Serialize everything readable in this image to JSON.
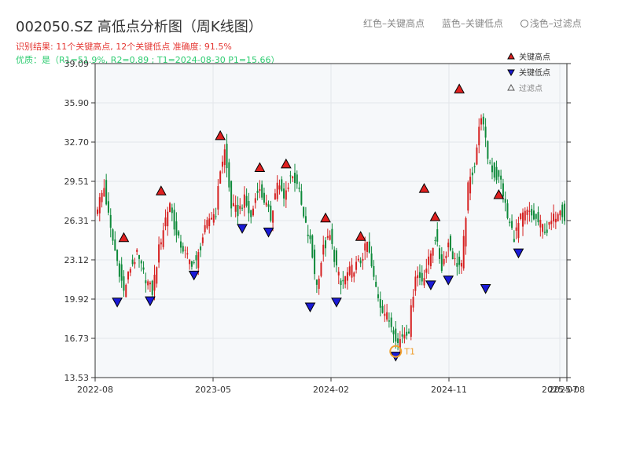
{
  "header": {
    "title": "002050.SZ 高低点分析图（周K线图）",
    "summary": "识别结果: 11个关键高点, 12个关键低点   准确度: 91.5%",
    "quality": "优质：是（R1=51.9%, R2=0.89 ; T1=2024-08-30 P1=15.66）",
    "color_legend": {
      "red": "红色–关键高点",
      "blue": "蓝色–关键低点",
      "light": "浅色–过滤点"
    }
  },
  "colors": {
    "up": "#d62020",
    "down": "#0e8a3a",
    "high_marker": "#e02020",
    "low_marker": "#1a1ad6",
    "t1": "#f0a030",
    "grid": "#e3e6ea",
    "plot_bg": "#f6f8fa"
  },
  "chart_data": {
    "type": "candlestick",
    "title": "002050.SZ 高低点分析图（周K线图）",
    "ylim": [
      13.53,
      39.09
    ],
    "y_ticks": [
      "13.53",
      "16.73",
      "19.92",
      "23.12",
      "26.31",
      "29.51",
      "32.70",
      "35.90",
      "39.09"
    ],
    "x_ticks": [
      "2022-08",
      "2023-05",
      "2024-02",
      "2024-11",
      "2025-07",
      "2025-08"
    ],
    "x_tick_fraction": [
      0.0,
      0.25,
      0.5,
      0.75,
      0.985,
      1.0
    ],
    "legend": [
      {
        "label": "关键高点",
        "marker": "triangle-up",
        "color": "#e02020"
      },
      {
        "label": "关键低点",
        "marker": "triangle-down",
        "color": "#1a1ad6"
      },
      {
        "label": "过滤点",
        "marker": "triangle-up-hollow",
        "color": "#888888"
      }
    ],
    "anchors": [
      [
        0,
        27.5
      ],
      [
        3,
        29.0
      ],
      [
        6,
        25.5
      ],
      [
        9,
        23.0
      ],
      [
        12,
        20.5
      ],
      [
        15,
        22.5
      ],
      [
        18,
        23.5
      ],
      [
        21,
        22.0
      ],
      [
        25,
        20.5
      ],
      [
        28,
        24.0
      ],
      [
        31,
        26.5
      ],
      [
        33,
        27.8
      ],
      [
        36,
        25.0
      ],
      [
        39,
        24.0
      ],
      [
        42,
        23.0
      ],
      [
        45,
        22.8
      ],
      [
        48,
        25.0
      ],
      [
        51,
        26.5
      ],
      [
        54,
        27.0
      ],
      [
        56,
        30.5
      ],
      [
        58,
        32.0
      ],
      [
        61,
        27.5
      ],
      [
        64,
        27.0
      ],
      [
        67,
        28.0
      ],
      [
        70,
        26.5
      ],
      [
        73,
        29.0
      ],
      [
        76,
        28.0
      ],
      [
        79,
        26.5
      ],
      [
        82,
        29.5
      ],
      [
        85,
        28.0
      ],
      [
        88,
        30.0
      ],
      [
        91,
        29.5
      ],
      [
        94,
        26.5
      ],
      [
        97,
        24.5
      ],
      [
        100,
        21.0
      ],
      [
        103,
        24.0
      ],
      [
        106,
        25.0
      ],
      [
        109,
        22.5
      ],
      [
        111,
        21.0
      ],
      [
        114,
        22.0
      ],
      [
        117,
        22.5
      ],
      [
        120,
        23.0
      ],
      [
        123,
        24.5
      ],
      [
        126,
        21.5
      ],
      [
        129,
        19.5
      ],
      [
        132,
        18.5
      ],
      [
        135,
        17.5
      ],
      [
        137,
        16.3
      ],
      [
        139,
        17.0
      ],
      [
        142,
        17.5
      ],
      [
        145,
        22.0
      ],
      [
        148,
        21.5
      ],
      [
        151,
        23.0
      ],
      [
        154,
        25.0
      ],
      [
        157,
        22.5
      ],
      [
        160,
        24.5
      ],
      [
        163,
        23.0
      ],
      [
        166,
        22.5
      ],
      [
        169,
        29.0
      ],
      [
        172,
        31.0
      ],
      [
        175,
        35.0
      ],
      [
        178,
        31.5
      ],
      [
        181,
        30.0
      ],
      [
        184,
        29.5
      ],
      [
        187,
        26.5
      ],
      [
        190,
        25.0
      ],
      [
        193,
        26.5
      ],
      [
        196,
        27.0
      ],
      [
        199,
        26.5
      ],
      [
        202,
        26.0
      ],
      [
        205,
        25.5
      ],
      [
        208,
        26.5
      ],
      [
        211,
        27.5
      ],
      [
        213,
        26.5
      ]
    ],
    "key_highs": [
      {
        "i": 12,
        "price": 24.6
      },
      {
        "i": 29,
        "price": 28.4
      },
      {
        "i": 56,
        "price": 32.9
      },
      {
        "i": 74,
        "price": 30.3
      },
      {
        "i": 86,
        "price": 30.6
      },
      {
        "i": 104,
        "price": 26.2
      },
      {
        "i": 120,
        "price": 24.7
      },
      {
        "i": 149,
        "price": 28.6
      },
      {
        "i": 154,
        "price": 26.3
      },
      {
        "i": 165,
        "price": 36.7
      },
      {
        "i": 183,
        "price": 28.1
      }
    ],
    "key_lows": [
      {
        "i": 9,
        "price": 20.0
      },
      {
        "i": 24,
        "price": 20.1
      },
      {
        "i": 44,
        "price": 22.2
      },
      {
        "i": 66,
        "price": 26.0
      },
      {
        "i": 78,
        "price": 25.7
      },
      {
        "i": 97,
        "price": 19.6
      },
      {
        "i": 109,
        "price": 20.0
      },
      {
        "i": 136,
        "price": 15.6
      },
      {
        "i": 152,
        "price": 21.4
      },
      {
        "i": 160,
        "price": 21.8
      },
      {
        "i": 177,
        "price": 21.1
      },
      {
        "i": 192,
        "price": 24.0
      }
    ],
    "t1": {
      "label": "T1",
      "date": "2024-08-30",
      "i": 136,
      "price": 15.66
    }
  }
}
